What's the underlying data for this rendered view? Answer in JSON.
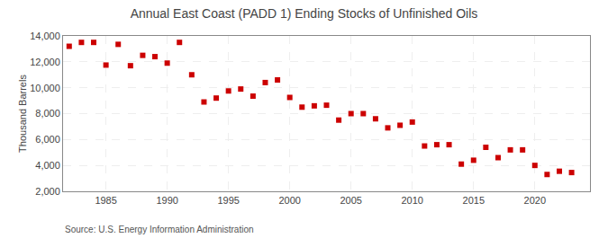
{
  "chart_data": {
    "type": "scatter",
    "title": "Annual East Coast (PADD 1) Ending Stocks of Unfinished Oils",
    "ylabel": "Thousand Barrels",
    "annotations": [
      "Source: U.S. Energy Information Administration"
    ],
    "x": [
      1982,
      1983,
      1984,
      1985,
      1986,
      1987,
      1988,
      1989,
      1990,
      1991,
      1992,
      1993,
      1994,
      1995,
      1996,
      1997,
      1998,
      1999,
      2000,
      2001,
      2002,
      2003,
      2004,
      2005,
      2006,
      2007,
      2008,
      2009,
      2010,
      2011,
      2012,
      2013,
      2014,
      2015,
      2016,
      2017,
      2018,
      2019,
      2020,
      2021,
      2022,
      2023
    ],
    "values": [
      13200,
      13500,
      13500,
      11750,
      13350,
      11700,
      12500,
      12400,
      11900,
      13500,
      11000,
      8900,
      9200,
      9750,
      9900,
      9350,
      10400,
      10600,
      9250,
      8500,
      8600,
      8650,
      7500,
      8000,
      8000,
      7600,
      6900,
      7100,
      7350,
      5500,
      5600,
      5600,
      4100,
      4400,
      5400,
      4600,
      5200,
      5200,
      4000,
      3300,
      3550,
      3450
    ],
    "color": "#cc0000",
    "marker": "square",
    "xlim": [
      1981.5,
      2024.5
    ],
    "xticks": [
      1985,
      1990,
      1995,
      2000,
      2005,
      2010,
      2015,
      2020
    ],
    "ylim": [
      2000,
      14000
    ],
    "yticks": [
      {
        "value": 2000,
        "label": "2,000"
      },
      {
        "value": 4000,
        "label": "4,000"
      },
      {
        "value": 6000,
        "label": "6,000"
      },
      {
        "value": 8000,
        "label": "8,000"
      },
      {
        "value": 10000,
        "label": "10,000"
      },
      {
        "value": 12000,
        "label": "12,000"
      },
      {
        "value": 14000,
        "label": "14,000"
      }
    ],
    "grid": true
  }
}
